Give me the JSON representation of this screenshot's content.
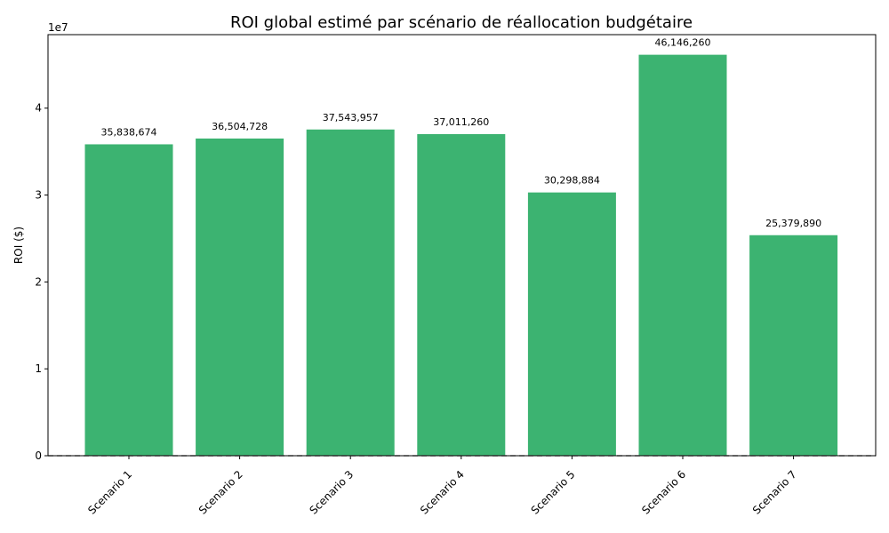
{
  "chart_data": {
    "type": "bar",
    "title": "ROI global estimé par scénario de réallocation budgétaire",
    "xlabel": "",
    "ylabel": "ROI ($)",
    "y_offset_label": "1e7",
    "categories": [
      "Scenario 1",
      "Scenario 2",
      "Scenario 3",
      "Scenario 4",
      "Scenario 5",
      "Scenario 6",
      "Scenario 7"
    ],
    "values": [
      35838674,
      36504728,
      37543957,
      37011260,
      30298884,
      46146260,
      25379890
    ],
    "value_labels": [
      "35,838,674",
      "36,504,728",
      "37,543,957",
      "37,011,260",
      "30,298,884",
      "46,146,260",
      "25,379,890"
    ],
    "ylim": [
      0,
      48460000
    ],
    "y_ticks": [
      0,
      10000000,
      20000000,
      30000000,
      40000000
    ],
    "y_tick_labels": [
      "0",
      "1",
      "2",
      "3",
      "4"
    ],
    "bar_color": "#3cb371",
    "reference_line": {
      "y": 0,
      "style": "dashed",
      "color": "#808080"
    },
    "grid": false,
    "legend": "none"
  }
}
